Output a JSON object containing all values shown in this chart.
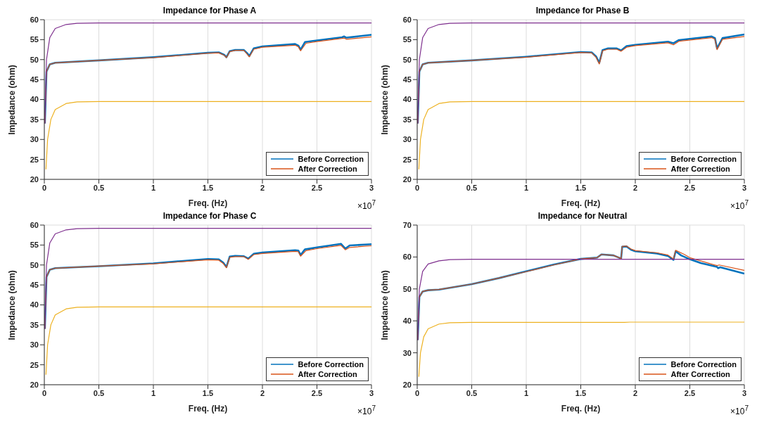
{
  "chart_data": [
    {
      "type": "line",
      "title": "Impedance for Phase A",
      "xlabel": "Freq. (Hz)",
      "ylabel": "Impedance (ohm)",
      "annotations": [
        "×10$^{7}$"
      ],
      "xlim": [
        0,
        3
      ],
      "xticks": [
        0,
        0.5,
        1,
        1.5,
        2,
        2.5,
        3
      ],
      "ylim": [
        20,
        60
      ],
      "yticks": [
        20,
        25,
        30,
        35,
        40,
        45,
        50,
        55,
        60
      ],
      "grid": true,
      "legend": "bottom right",
      "series": [
        {
          "name": "Before Correction",
          "color": "#0072bd",
          "x": [
            0.005,
            0.02,
            0.05,
            0.1,
            0.5,
            1,
            1.5,
            1.6,
            1.65,
            1.67,
            1.7,
            1.75,
            1.83,
            1.86,
            1.88,
            1.92,
            2,
            2.3,
            2.33,
            2.35,
            2.39,
            2.5,
            2.73,
            2.75,
            2.77,
            3
          ],
          "values": [
            34,
            47,
            48.8,
            49.2,
            49.8,
            50.6,
            51.7,
            51.8,
            51.2,
            50.6,
            52.1,
            52.4,
            52.4,
            51.6,
            50.9,
            52.8,
            53.3,
            53.9,
            53.5,
            52.5,
            54.4,
            54.8,
            55.6,
            55.8,
            55.5,
            56.2
          ]
        },
        {
          "name": "After Correction",
          "color": "#d95319",
          "x": [
            0.005,
            0.02,
            0.05,
            0.1,
            0.5,
            1,
            1.5,
            1.6,
            1.65,
            1.67,
            1.7,
            1.75,
            1.83,
            1.86,
            1.88,
            1.92,
            2,
            2.3,
            2.33,
            2.35,
            2.4,
            2.5,
            2.73,
            2.75,
            2.77,
            3
          ],
          "values": [
            34,
            47,
            48.8,
            49.2,
            49.8,
            50.5,
            51.6,
            51.7,
            51.1,
            50.5,
            52,
            52.3,
            52.3,
            51.4,
            50.7,
            52.6,
            53.1,
            53.6,
            53.2,
            52.2,
            54.1,
            54.5,
            55.3,
            55.4,
            55.1,
            55.7
          ]
        },
        {
          "color": "#7e2f8e",
          "x": [
            0.005,
            0.02,
            0.05,
            0.1,
            0.2,
            0.3,
            0.5,
            3
          ],
          "values": [
            34,
            50,
            55.5,
            57.8,
            58.8,
            59.1,
            59.2,
            59.2
          ]
        },
        {
          "color": "#edb120",
          "x": [
            0.015,
            0.03,
            0.06,
            0.1,
            0.2,
            0.3,
            0.5,
            3
          ],
          "values": [
            22.5,
            30,
            35,
            37.5,
            39,
            39.4,
            39.5,
            39.5
          ]
        }
      ]
    },
    {
      "type": "line",
      "title": "Impedance for Phase B",
      "xlabel": "Freq. (Hz)",
      "ylabel": "Impedance (ohm)",
      "annotations": [
        "×10$^{7}$"
      ],
      "xlim": [
        0,
        3
      ],
      "xticks": [
        0,
        0.5,
        1,
        1.5,
        2,
        2.5,
        3
      ],
      "ylim": [
        20,
        60
      ],
      "yticks": [
        20,
        25,
        30,
        35,
        40,
        45,
        50,
        55,
        60
      ],
      "grid": true,
      "legend": "bottom right",
      "series": [
        {
          "name": "Before Correction",
          "color": "#0072bd",
          "x": [
            0.005,
            0.02,
            0.05,
            0.1,
            0.5,
            1,
            1.5,
            1.6,
            1.64,
            1.67,
            1.7,
            1.75,
            1.83,
            1.87,
            1.92,
            2,
            2.3,
            2.35,
            2.4,
            2.7,
            2.73,
            2.75,
            2.8,
            3
          ],
          "values": [
            34,
            47,
            48.8,
            49.2,
            49.8,
            50.7,
            51.9,
            51.8,
            50.8,
            49.2,
            52.4,
            52.8,
            52.8,
            52.3,
            53.4,
            53.7,
            54.5,
            54.1,
            54.9,
            55.8,
            55.4,
            52.8,
            55.4,
            56.3
          ]
        },
        {
          "name": "After Correction",
          "color": "#d95319",
          "x": [
            0.005,
            0.02,
            0.05,
            0.1,
            0.5,
            1,
            1.5,
            1.6,
            1.64,
            1.67,
            1.7,
            1.75,
            1.83,
            1.87,
            1.92,
            2,
            2.3,
            2.35,
            2.4,
            2.7,
            2.73,
            2.75,
            2.8,
            3
          ],
          "values": [
            34,
            47,
            48.8,
            49.2,
            49.8,
            50.6,
            51.8,
            51.7,
            50.6,
            48.9,
            52.2,
            52.6,
            52.6,
            52.1,
            53.1,
            53.5,
            54.2,
            53.7,
            54.6,
            55.5,
            55.1,
            52.5,
            55.1,
            55.8
          ]
        },
        {
          "color": "#7e2f8e",
          "x": [
            0.005,
            0.02,
            0.05,
            0.1,
            0.2,
            0.3,
            0.5,
            3
          ],
          "values": [
            34,
            50,
            55.5,
            57.8,
            58.8,
            59.1,
            59.2,
            59.2
          ]
        },
        {
          "color": "#edb120",
          "x": [
            0.015,
            0.03,
            0.06,
            0.1,
            0.2,
            0.3,
            0.5,
            3
          ],
          "values": [
            22.5,
            30,
            35,
            37.5,
            39,
            39.4,
            39.5,
            39.5
          ]
        }
      ]
    },
    {
      "type": "line",
      "title": "Impedance for Phase C",
      "xlabel": "Freq. (Hz)",
      "ylabel": "Impedance (ohm)",
      "annotations": [
        "×10$^{7}$"
      ],
      "xlim": [
        0,
        3
      ],
      "xticks": [
        0,
        0.5,
        1,
        1.5,
        2,
        2.5,
        3
      ],
      "ylim": [
        20,
        60
      ],
      "yticks": [
        20,
        25,
        30,
        35,
        40,
        45,
        50,
        55,
        60
      ],
      "grid": true,
      "legend": "bottom right",
      "series": [
        {
          "name": "Before Correction",
          "color": "#0072bd",
          "x": [
            0.005,
            0.02,
            0.05,
            0.1,
            0.5,
            1,
            1.5,
            1.6,
            1.64,
            1.67,
            1.7,
            1.75,
            1.83,
            1.87,
            1.92,
            2,
            2.3,
            2.33,
            2.35,
            2.39,
            2.5,
            2.72,
            2.76,
            2.8,
            3
          ],
          "values": [
            34,
            47,
            48.8,
            49.2,
            49.7,
            50.4,
            51.5,
            51.4,
            50.6,
            49.5,
            52.1,
            52.3,
            52.2,
            51.6,
            52.8,
            53.1,
            53.7,
            53.6,
            52.5,
            53.9,
            54.4,
            55.3,
            54.1,
            54.9,
            55.2
          ]
        },
        {
          "name": "After Correction",
          "color": "#d95319",
          "x": [
            0.005,
            0.02,
            0.05,
            0.1,
            0.5,
            1,
            1.5,
            1.6,
            1.64,
            1.67,
            1.7,
            1.75,
            1.83,
            1.87,
            1.92,
            2,
            2.3,
            2.33,
            2.35,
            2.4,
            2.5,
            2.72,
            2.76,
            2.8,
            3
          ],
          "values": [
            34,
            47,
            48.8,
            49.2,
            49.7,
            50.3,
            51.3,
            51.2,
            50.4,
            49.3,
            51.9,
            52.1,
            52.1,
            51.4,
            52.6,
            52.9,
            53.4,
            53.3,
            52.2,
            53.6,
            54.1,
            54.9,
            53.8,
            54.4,
            54.8
          ]
        },
        {
          "color": "#7e2f8e",
          "x": [
            0.005,
            0.02,
            0.05,
            0.1,
            0.2,
            0.3,
            0.5,
            3
          ],
          "values": [
            34,
            50,
            55.5,
            57.8,
            58.8,
            59.1,
            59.2,
            59.2
          ]
        },
        {
          "color": "#edb120",
          "x": [
            0.015,
            0.03,
            0.06,
            0.1,
            0.2,
            0.3,
            0.5,
            3
          ],
          "values": [
            22.5,
            30,
            35,
            37.5,
            39,
            39.4,
            39.5,
            39.5
          ]
        }
      ]
    },
    {
      "type": "line",
      "title": "Impedance for Neutral",
      "xlabel": "Freq. (Hz)",
      "ylabel": "Impedance (ohm)",
      "annotations": [
        "×10$^{7}$"
      ],
      "xlim": [
        0,
        3
      ],
      "xticks": [
        0,
        0.5,
        1,
        1.5,
        2,
        2.5,
        3
      ],
      "ylim": [
        20,
        70
      ],
      "yticks": [
        20,
        30,
        40,
        50,
        60,
        70
      ],
      "grid": true,
      "legend": "bottom right",
      "series": [
        {
          "name": "Before Correction",
          "color": "#0072bd",
          "x": [
            0.005,
            0.02,
            0.05,
            0.1,
            0.2,
            0.5,
            0.75,
            1,
            1.25,
            1.5,
            1.65,
            1.69,
            1.8,
            1.87,
            1.88,
            1.92,
            1.96,
            2,
            2.2,
            2.3,
            2.35,
            2.37,
            2.42,
            2.5,
            2.6,
            2.75,
            2.76,
            2.78,
            3
          ],
          "values": [
            34,
            47.5,
            49.2,
            49.6,
            49.8,
            51.5,
            53.4,
            55.5,
            57.6,
            59.4,
            59.8,
            60.8,
            60.5,
            59.5,
            63.2,
            63.3,
            62.3,
            61.8,
            61.1,
            60.3,
            59.1,
            61.8,
            60.5,
            59.3,
            58.1,
            56.9,
            56.5,
            56.8,
            54.8
          ]
        },
        {
          "name": "After Correction",
          "color": "#d95319",
          "x": [
            0.005,
            0.02,
            0.05,
            0.1,
            0.2,
            0.5,
            0.75,
            1,
            1.25,
            1.5,
            1.65,
            1.69,
            1.8,
            1.87,
            1.88,
            1.92,
            1.96,
            2,
            2.2,
            2.3,
            2.35,
            2.37,
            2.45,
            2.5,
            2.75,
            2.77,
            3
          ],
          "values": [
            34,
            47.5,
            49.2,
            49.6,
            49.8,
            51.5,
            53.4,
            55.4,
            57.5,
            59.4,
            59.8,
            60.8,
            60.5,
            59.5,
            63.3,
            63.4,
            62.5,
            62,
            61.3,
            60.6,
            59.4,
            62.1,
            60.8,
            59.8,
            57.3,
            57.5,
            55.8
          ]
        },
        {
          "color": "#7e2f8e",
          "x": [
            0.005,
            0.02,
            0.05,
            0.1,
            0.2,
            0.3,
            0.5,
            3
          ],
          "values": [
            34,
            50,
            55.5,
            57.8,
            58.8,
            59.2,
            59.3,
            59.3
          ]
        },
        {
          "color": "#edb120",
          "x": [
            0.015,
            0.03,
            0.06,
            0.1,
            0.2,
            0.3,
            0.5,
            1.9,
            1.95,
            3
          ],
          "values": [
            22.5,
            30,
            35,
            37.5,
            39,
            39.4,
            39.5,
            39.5,
            39.6,
            39.6
          ]
        }
      ]
    }
  ]
}
